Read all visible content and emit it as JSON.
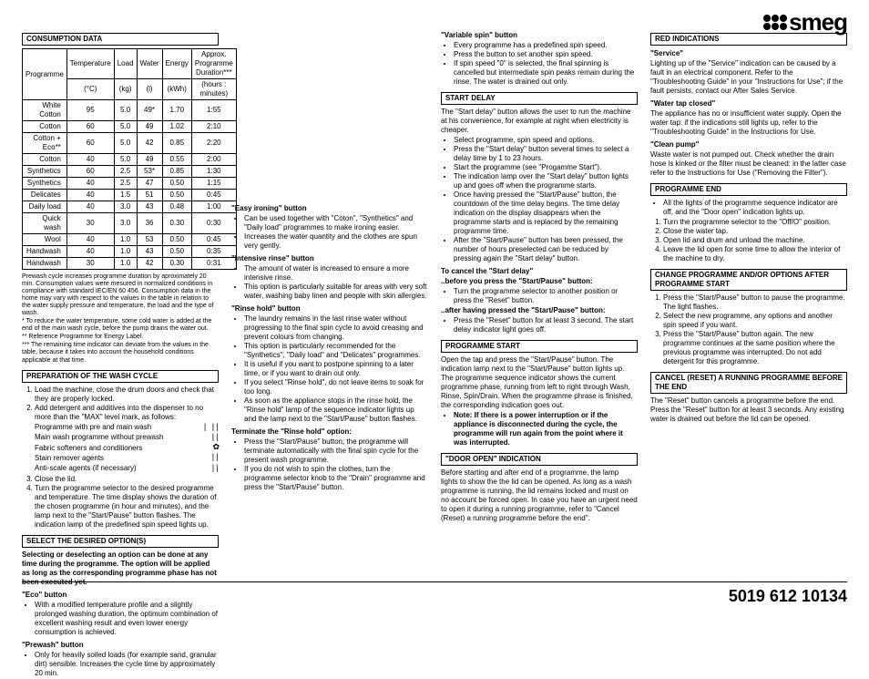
{
  "logo_text": "smeg",
  "page_number": "5019 612 10134",
  "consumption": {
    "title": "CONSUMPTION DATA",
    "headers_row1": [
      "Programme",
      "Temperature",
      "Load",
      "Water",
      "Energy",
      "Approx. Programme Duration***"
    ],
    "headers_row2": [
      "",
      "(°C)",
      "(kg)",
      "(l)",
      "(kWh)",
      "(hours : minutes)"
    ],
    "rows": [
      [
        "White Cotton",
        "95",
        "5.0",
        "49*",
        "1.70",
        "1:55"
      ],
      [
        "Cotton",
        "60",
        "5.0",
        "49",
        "1.02",
        "2:10"
      ],
      [
        "Cotton + Eco**",
        "60",
        "5.0",
        "42",
        "0.85",
        "2:20"
      ],
      [
        "Cotton",
        "40",
        "5.0",
        "49",
        "0.55",
        "2:00"
      ],
      [
        "Synthetics",
        "60",
        "2.5",
        "53*",
        "0.85",
        "1:30"
      ],
      [
        "Synthetics",
        "40",
        "2.5",
        "47",
        "0.50",
        "1:15"
      ],
      [
        "Delicates",
        "40",
        "1.5",
        "51",
        "0.50",
        "0:45"
      ],
      [
        "Daily load",
        "40",
        "3.0",
        "43",
        "0.48",
        "1:00"
      ],
      [
        "Quick wash",
        "30",
        "3.0",
        "36",
        "0.30",
        "0:30"
      ],
      [
        "Wool",
        "40",
        "1.0",
        "53",
        "0.50",
        "0:45"
      ],
      [
        "Handwash",
        "40",
        "1.0",
        "43",
        "0.50",
        "0:35"
      ],
      [
        "Handwash",
        "30",
        "1.0",
        "42",
        "0.30",
        "0:31"
      ]
    ],
    "footnotes": [
      "Prewash cycle increases programme duration by aproximately 20 min. Consumption values were mesured in normalized conditions in compliance with standard IEC/EN 60 456. Consumption data in the home may vary with respect to the values in the table in relation to the water supply pressure and temperature, the load and the type of wash.",
      "*   To reduce the water temperature, some cold water is added at the end of the main wash cycle, before the pump drains the water out.",
      "**  Reference Programme for Energy Label.",
      "*** The remaining time indicator can deviate from the values in the table, because it takes into account the household conditions applicable at that time."
    ]
  },
  "col1": {
    "prep_title": "PREPARATION OF THE WASH CYCLE",
    "prep_items": [
      "Load the machine, close the drum doors and check that they are properly locked.",
      "Add detergent and additives into the dispenser to no more than the \"MAX\" level mark, as follows:"
    ],
    "additive_rows": [
      "Programme with pre and main wash",
      "Main wash programme without prewash",
      "Fabric softeners and conditioners",
      "Stain remover agents",
      "Anti-scale agents (if necessary)"
    ],
    "additive_syms": [
      "| ||",
      "||",
      "✿",
      "||",
      "||"
    ],
    "prep_items2": [
      "Close the lid.",
      "Turn the programme selector to the desired programme and temperature. The time display shows the duration of the chosen programme (in hour and minutes), and the lamp next to the \"Start/Pause\" button flashes. The indication lamp of the predefined spin speed lights up."
    ],
    "select_title": "SELECT THE DESIRED OPTION(S)",
    "select_intro": "Selecting or deselecting an option can be done at any time during the programme. The option will be applied as long as the corresponding programme phase has not been executed yet.",
    "eco_title": "\"Eco\" button",
    "eco_items": [
      "With a modified temperature profile and a slightly prolonged washing duration, the optimum combination of excellent washing result and even lower energy consumption is achieved."
    ],
    "prewash_title": "\"Prewash\" button",
    "prewash_items": [
      "Only for heavily soiled loads (for example sand, granular dirt) sensible. Increases the cycle time by approximately 20 min."
    ]
  },
  "col2": {
    "easy_title": "\"Easy ironing\" button",
    "easy_items": [
      "Can be used together with \"Coton\", \"Synthetics\" and \"Daily load\" programmes to make ironing easier.",
      "Increases the water quantity and the clothes are spun very gently."
    ],
    "intensive_title": "\"Intensive rinse\" button",
    "intensive_items": [
      "The amount of water is increased to ensure a more intensive rinse.",
      "This option is particularly suitable for areas with very soft water, washing baby linen and people with skin allergies."
    ],
    "rinse_title": "\"Rinse hold\" button",
    "rinse_items": [
      "The laundry remains in the last rinse water without progressing to the final spin cycle to avoid creasing and prevent colours from changing.",
      "This option is particularly recommended for the \"Synthetics\", \"Daily load\" and \"Delicates\" programmes.",
      "It is useful if you want to postpone spinning to a later time, or if you want to drain out only.",
      "If you select \"Rinse hold\", do not leave items to soak for too long.",
      "As soon as the appliance stops in the rinse hold, the \"Rinse hold\" lamp of the sequence indicator lights up and the lamp next to the \"Start/Pause\" button flashes."
    ],
    "term_title": "Terminate the \"Rinse hold\" option:",
    "term_items": [
      "Press the \"Start/Pause\" button; the programme will terminate automatically with the final spin cycle for the present wash programme.",
      "If you do not wish to spin the clothes, turn the programme selector knob to the \"Drain\" programme and press the \"Start/Pause\" button."
    ],
    "var_title": "\"Variable spin\" button",
    "var_items": [
      "Every programme has a predefined spin speed.",
      "Press the button to set another spin speed.",
      "If spin speed \"0\" is selected, the final spinning is cancelled but intermediate spin peaks remain during the rinse. The water is drained out only."
    ]
  },
  "col3": {
    "startdelay_title": "START DELAY",
    "startdelay_intro": "The \"Start delay\" button allows the user to run the machine at his convenience, for example at night when electricity is cheaper.",
    "startdelay_items": [
      "Select programme, spin speed and options.",
      "Press the \"Start delay\" button several times to select a delay time by 1 to 23 hours.",
      "Start the programme (see \"Progamme Start\").",
      "The indication lamp over the \"Start delay\" button lights up and goes off when the programme starts.",
      "Once having pressed the \"Start/Pause\" button, the countdown of the time delay begins. The time delay indication on the display disappears when the programme starts and is replaced by the remaining programme time.",
      "After the \"Start/Pause\" button has been pressed, the number of hours preselected can be reduced by pressing again the \"Start delay\" button."
    ],
    "cancel_title": "To cancel the \"Start delay\"",
    "cancel_before_title": "..before you press the \"Start/Pause\" button:",
    "cancel_before_items": [
      "Turn the programme selector to another position or press the \"Reset\" button."
    ],
    "cancel_after_title": "..after having pressed the \"Start/Pause\" button:",
    "cancel_after_items": [
      "Press the \"Reset\" button for at least 3 second. The start delay indicator light goes off."
    ],
    "progstart_title": "PROGRAMME START",
    "progstart_text": "Open the tap and press the \"Start/Pause\" button. The indication lamp next to the \"Start/Pause\" button lights up. The programme sequence indicator shows the current programme phase, running from left to right through Wash, Rinse, Spin/Drain. When the programme phrase is finished, the corresponding indication goes out.",
    "progstart_note": "Note: If there is a power interruption or if the appliance is disconnected during the cycle, the programme will run again from the point where it was interrupted.",
    "door_title": "\"DOOR OPEN\" INDICATION",
    "door_text": "Before starting and after end of a programme, the lamp lights to show the the lid can be opened. As long as a wash programme is running, the lid remains locked and must on no account be forced open. In case you have an urgent need to open it during a running programme, refer to \"Cancel (Reset) a running programme before the end\"."
  },
  "col4": {
    "red_title": "RED INDICATIONS",
    "service_title": "\"Service\"",
    "service_text": "Lighting up of the \"Service\" indication can be caused by a fault in an electrical component. Refer to the \"Troubleshooting Guide\" in your \"Instructions for Use\"; if the fault persists, contact our After Sales Service.",
    "tap_title": "\"Water tap closed\"",
    "tap_text": "The appliance has no or insufficient water supply. Open the water tap: if the indications still lights up, refer to the \"Troubleshooting Guide\" in the Instructions for Use.",
    "pump_title": "\"Clean pump\"",
    "pump_text": "Waste water is not pumped out. Check whether the drain hose is kinked or the filter must be cleaned: in the latter case refer to the Instructions for Use (\"Removing the Filter\").",
    "end_title": "PROGRAMME END",
    "end_intro": "All the lights of the programme sequence indicator are off, and the \"Door open\" indication lights up.",
    "end_items": [
      "Turn the programme selector to the \"Off/O\" position.",
      "Close the water tap.",
      "Open lid and drum and unload the machine.",
      "Leave the lid open for some time to allow the interior of the machine to dry."
    ],
    "change_title": "CHANGE PROGRAMME AND/OR OPTIONS AFTER PROGRAMME START",
    "change_items": [
      "Press the \"Start/Pause\" button to pause the programme. The light flashes.",
      "Select the new programme, any options and another spin speed if you want.",
      "Press the \"Start/Pause\" button again. The new programme continues at the same position where the previous programme was interrupted. Do not add detergent for this programme."
    ],
    "cancel_title": "CANCEL (RESET) A RUNNING PROGRAMME BEFORE THE END",
    "cancel_text": "The \"Reset\" button cancels a programme before the end. Press the \"Reset\" button for at least 3 seconds. Any existing water is drained out before the lid can be opened."
  }
}
